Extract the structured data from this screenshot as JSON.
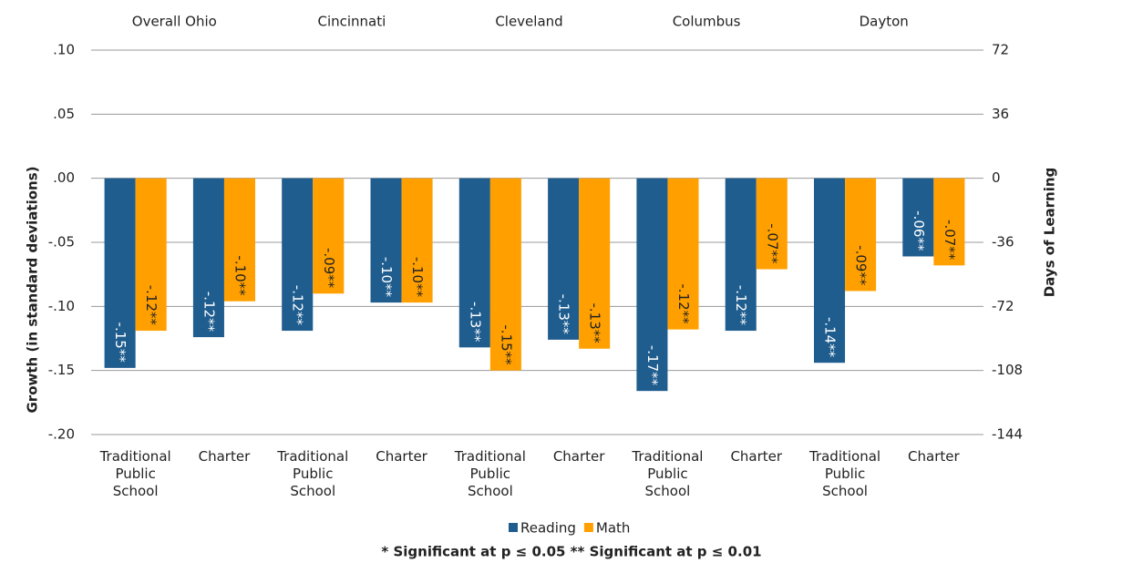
{
  "chart_data": {
    "type": "bar",
    "groups": [
      "Overall Ohio",
      "Cincinnati",
      "Cleveland",
      "Columbus",
      "Dayton"
    ],
    "categories": [
      "Traditional Public School",
      "Charter",
      "Traditional Public School",
      "Charter",
      "Traditional Public School",
      "Charter",
      "Traditional Public School",
      "Charter",
      "Traditional Public School",
      "Charter"
    ],
    "series": [
      {
        "name": "Reading",
        "color": "#1f5d8f",
        "values": [
          -0.148,
          -0.124,
          -0.119,
          -0.097,
          -0.132,
          -0.126,
          -0.166,
          -0.119,
          -0.144,
          -0.061
        ],
        "value_labels": [
          "-.15**",
          "-.12**",
          "-.12**",
          "-.10**",
          "-.13**",
          "-.13**",
          "-.17**",
          "-.12**",
          "-.14**",
          "-.06**"
        ]
      },
      {
        "name": "Math",
        "color": "#ffa000",
        "values": [
          -0.119,
          -0.096,
          -0.09,
          -0.097,
          -0.15,
          -0.133,
          -0.118,
          -0.071,
          -0.088,
          -0.068
        ],
        "value_labels": [
          "-.12**",
          "-.10**",
          "-.09**",
          "-.10**",
          "-.15**",
          "-.13**",
          "-.12**",
          "-.07**",
          "-.09**",
          "-.07**"
        ]
      }
    ],
    "ylabel": "Growth (in standard deviations)",
    "y2label": "Days of Learning",
    "ylim": [
      -0.2,
      0.1
    ],
    "yticks": [
      {
        "value": 0.1,
        "label": ".10"
      },
      {
        "value": 0.05,
        "label": ".05"
      },
      {
        "value": 0,
        "label": ".00"
      },
      {
        "value": -0.05,
        "label": "-.05"
      },
      {
        "value": -0.1,
        "label": "-.10"
      },
      {
        "value": -0.15,
        "label": "-.15"
      },
      {
        "value": -0.2,
        "label": "-.20"
      }
    ],
    "y2lim": [
      -144,
      72
    ],
    "y2ticks": [
      72,
      36,
      0,
      -36,
      -72,
      -108,
      -144
    ],
    "grid": true,
    "legend": "bottom",
    "footnote": "* Significant at p ≤ 0.05  ** Significant at p ≤ 0.01"
  }
}
